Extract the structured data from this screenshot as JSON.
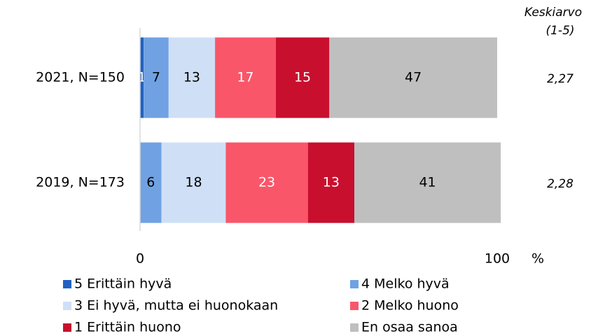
{
  "chart_data": {
    "type": "stacked_barh",
    "categories": [
      "2021, N=150",
      "2019, N=173"
    ],
    "series": [
      {
        "name": "5 Erittäin hyvä",
        "color": "#2161c2",
        "text_color": "#ffffff",
        "values": [
          1,
          null
        ]
      },
      {
        "name": "4 Melko hyvä",
        "color": "#70a2e3",
        "text_color": "#000000",
        "values": [
          7,
          6
        ]
      },
      {
        "name": "3 Ei hyvä, mutta ei huonokaan",
        "color": "#cfdff6",
        "text_color": "#000000",
        "values": [
          13,
          18
        ]
      },
      {
        "name": "2 Melko huono",
        "color": "#f9566a",
        "text_color": "#ffffff",
        "values": [
          17,
          23
        ]
      },
      {
        "name": "1 Erittäin huono",
        "color": "#c80f2e",
        "text_color": "#ffffff",
        "values": [
          15,
          13
        ]
      },
      {
        "name": "En osaa sanoa",
        "color": "#bfbfbf",
        "text_color": "#000000",
        "values": [
          47,
          41
        ]
      }
    ],
    "xlim": [
      0,
      100
    ],
    "xticks": [
      0,
      100
    ],
    "xlabel": "%",
    "mean_header": [
      "Keskiarvo",
      "(1-5)"
    ],
    "means": [
      2.27,
      2.28
    ],
    "mean_labels": [
      "2,27",
      "2,28"
    ],
    "legend": "bottom"
  }
}
